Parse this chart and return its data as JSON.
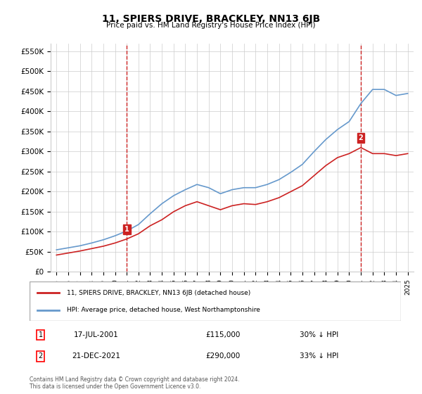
{
  "title": "11, SPIERS DRIVE, BRACKLEY, NN13 6JB",
  "subtitle": "Price paid vs. HM Land Registry's House Price Index (HPI)",
  "ylim": [
    0,
    570000
  ],
  "yticks": [
    0,
    50000,
    100000,
    150000,
    200000,
    250000,
    300000,
    350000,
    400000,
    450000,
    500000,
    550000
  ],
  "ytick_labels": [
    "£0",
    "£50K",
    "£100K",
    "£150K",
    "£200K",
    "£250K",
    "£300K",
    "£350K",
    "£400K",
    "£450K",
    "£500K",
    "£550K"
  ],
  "hpi_color": "#6699cc",
  "price_color": "#cc2222",
  "marker1_date_idx": 6.5,
  "marker2_date_idx": 27.0,
  "sale1_label": "1",
  "sale2_label": "2",
  "sale1_date": "17-JUL-2001",
  "sale1_price": "£115,000",
  "sale1_hpi": "30% ↓ HPI",
  "sale2_date": "21-DEC-2021",
  "sale2_price": "£290,000",
  "sale2_hpi": "33% ↓ HPI",
  "legend_label1": "11, SPIERS DRIVE, BRACKLEY, NN13 6JB (detached house)",
  "legend_label2": "HPI: Average price, detached house, West Northamptonshire",
  "footer": "Contains HM Land Registry data © Crown copyright and database right 2024.\nThis data is licensed under the Open Government Licence v3.0.",
  "bg_color": "#ffffff",
  "grid_color": "#cccccc",
  "years": [
    1995,
    1996,
    1997,
    1998,
    1999,
    2000,
    2001,
    2002,
    2003,
    2004,
    2005,
    2006,
    2007,
    2008,
    2009,
    2010,
    2011,
    2012,
    2013,
    2014,
    2015,
    2016,
    2017,
    2018,
    2019,
    2020,
    2021,
    2022,
    2023,
    2024,
    2025
  ],
  "hpi_values": [
    55000,
    60000,
    65000,
    72000,
    80000,
    90000,
    102000,
    118000,
    145000,
    170000,
    190000,
    205000,
    218000,
    210000,
    195000,
    205000,
    210000,
    210000,
    218000,
    230000,
    248000,
    268000,
    300000,
    330000,
    355000,
    375000,
    420000,
    455000,
    455000,
    440000,
    445000
  ],
  "price_values": [
    42000,
    47000,
    52000,
    58000,
    64000,
    72000,
    82000,
    95000,
    115000,
    130000,
    150000,
    165000,
    175000,
    165000,
    155000,
    165000,
    170000,
    168000,
    175000,
    185000,
    200000,
    215000,
    240000,
    265000,
    285000,
    295000,
    310000,
    295000,
    295000,
    290000,
    295000
  ]
}
